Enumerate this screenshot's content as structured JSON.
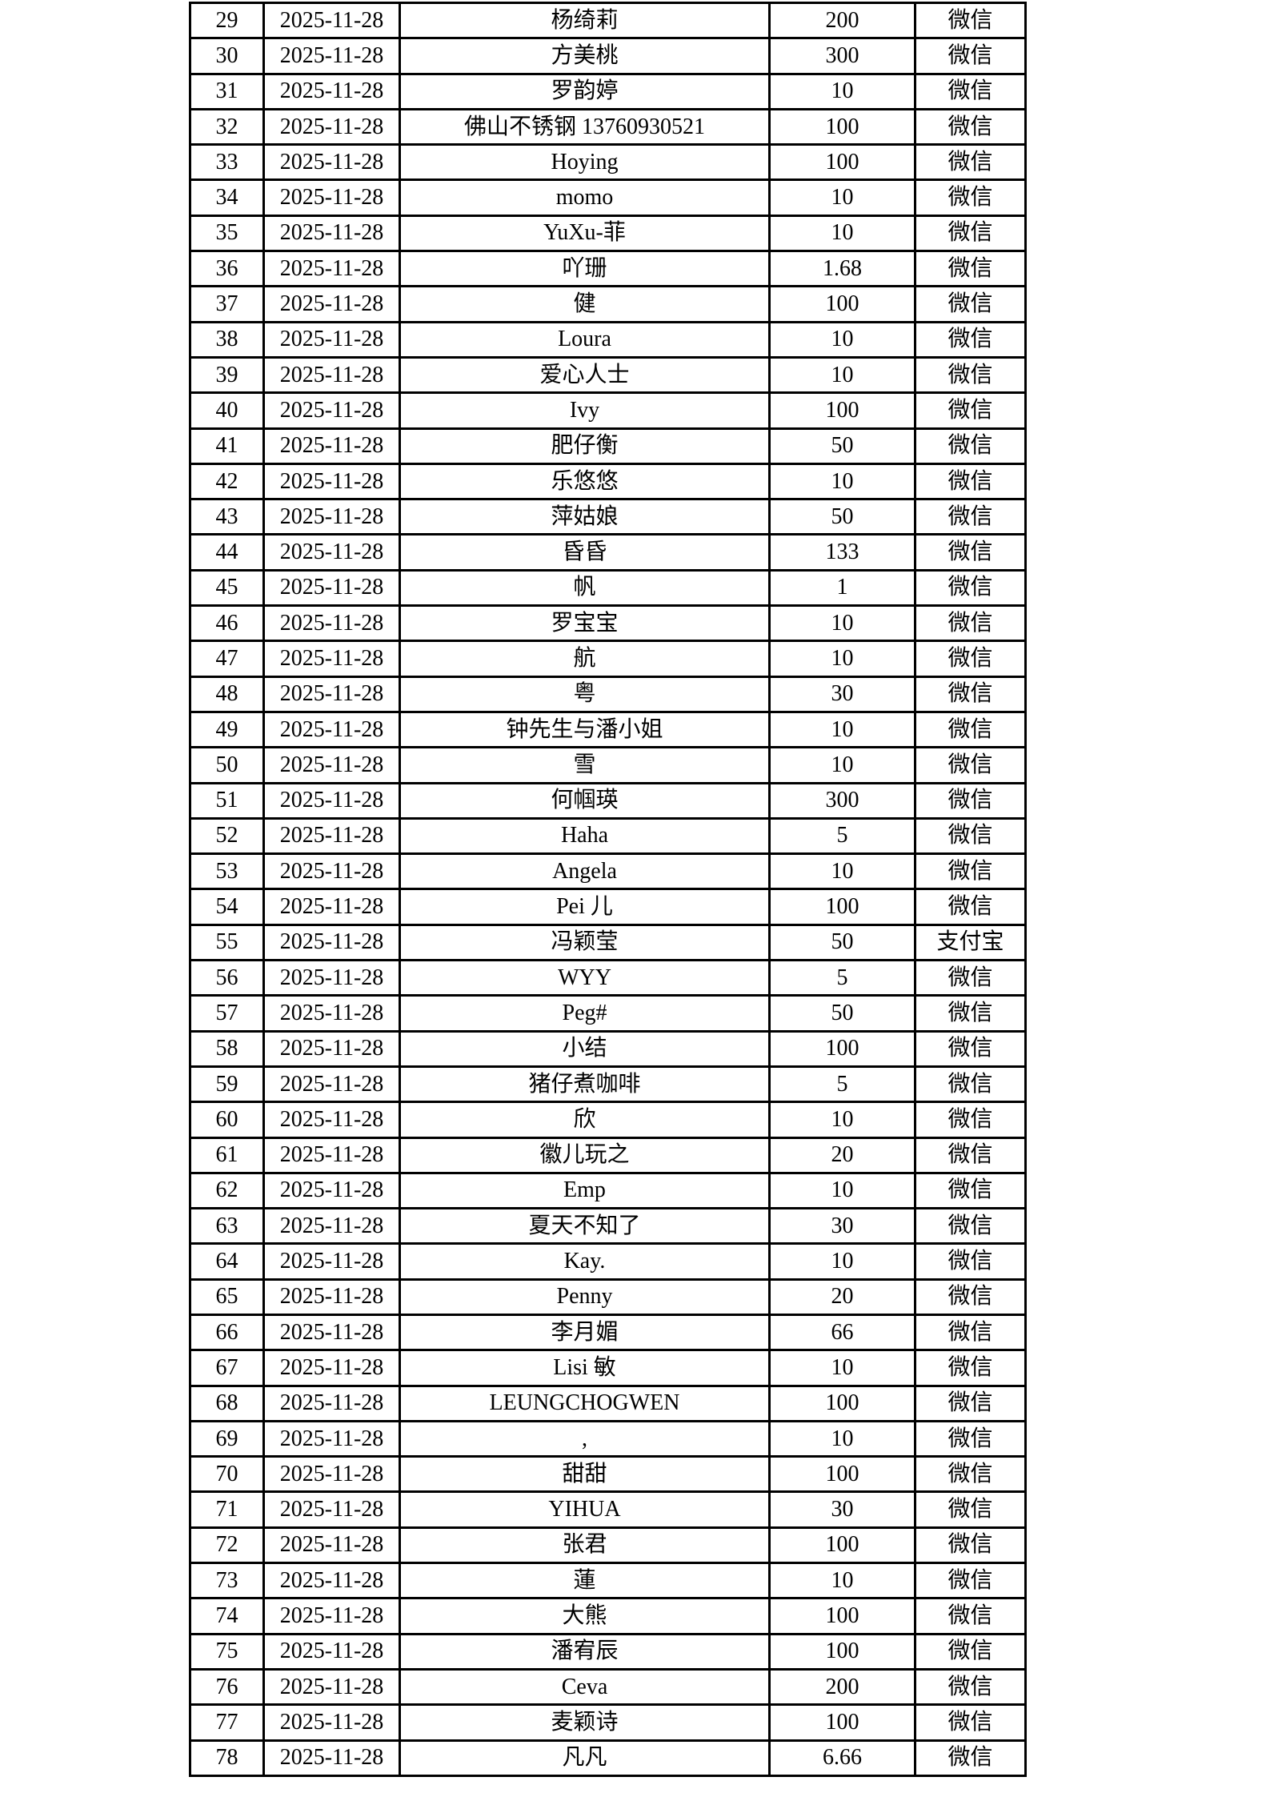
{
  "table": {
    "row_fields": [
      "no",
      "date",
      "name",
      "amount",
      "method"
    ],
    "border_color": "#000000",
    "text_color": "#000000",
    "rows": [
      {
        "no": "29",
        "date": "2025-11-28",
        "name": "杨绮莉",
        "amount": "200",
        "method": "微信"
      },
      {
        "no": "30",
        "date": "2025-11-28",
        "name": "方美桃",
        "amount": "300",
        "method": "微信"
      },
      {
        "no": "31",
        "date": "2025-11-28",
        "name": "罗韵婷",
        "amount": "10",
        "method": "微信"
      },
      {
        "no": "32",
        "date": "2025-11-28",
        "name": "佛山不锈钢 13760930521",
        "amount": "100",
        "method": "微信"
      },
      {
        "no": "33",
        "date": "2025-11-28",
        "name": "Hoying",
        "amount": "100",
        "method": "微信"
      },
      {
        "no": "34",
        "date": "2025-11-28",
        "name": "momo",
        "amount": "10",
        "method": "微信"
      },
      {
        "no": "35",
        "date": "2025-11-28",
        "name": "YuXu-菲",
        "amount": "10",
        "method": "微信"
      },
      {
        "no": "36",
        "date": "2025-11-28",
        "name": "吖珊",
        "amount": "1.68",
        "method": "微信"
      },
      {
        "no": "37",
        "date": "2025-11-28",
        "name": "健",
        "amount": "100",
        "method": "微信"
      },
      {
        "no": "38",
        "date": "2025-11-28",
        "name": "Loura",
        "amount": "10",
        "method": "微信"
      },
      {
        "no": "39",
        "date": "2025-11-28",
        "name": "爱心人士",
        "amount": "10",
        "method": "微信"
      },
      {
        "no": "40",
        "date": "2025-11-28",
        "name": "Ivy",
        "amount": "100",
        "method": "微信"
      },
      {
        "no": "41",
        "date": "2025-11-28",
        "name": "肥仔衡",
        "amount": "50",
        "method": "微信"
      },
      {
        "no": "42",
        "date": "2025-11-28",
        "name": "乐悠悠",
        "amount": "10",
        "method": "微信"
      },
      {
        "no": "43",
        "date": "2025-11-28",
        "name": "萍姑娘",
        "amount": "50",
        "method": "微信"
      },
      {
        "no": "44",
        "date": "2025-11-28",
        "name": "昏昏",
        "amount": "133",
        "method": "微信"
      },
      {
        "no": "45",
        "date": "2025-11-28",
        "name": "帆",
        "amount": "1",
        "method": "微信"
      },
      {
        "no": "46",
        "date": "2025-11-28",
        "name": "罗宝宝",
        "amount": "10",
        "method": "微信"
      },
      {
        "no": "47",
        "date": "2025-11-28",
        "name": "航",
        "amount": "10",
        "method": "微信"
      },
      {
        "no": "48",
        "date": "2025-11-28",
        "name": "粤",
        "amount": "30",
        "method": "微信"
      },
      {
        "no": "49",
        "date": "2025-11-28",
        "name": "钟先生与潘小姐",
        "amount": "10",
        "method": "微信"
      },
      {
        "no": "50",
        "date": "2025-11-28",
        "name": "雪",
        "amount": "10",
        "method": "微信"
      },
      {
        "no": "51",
        "date": "2025-11-28",
        "name": "何帼瑛",
        "amount": "300",
        "method": "微信"
      },
      {
        "no": "52",
        "date": "2025-11-28",
        "name": "Haha",
        "amount": "5",
        "method": "微信"
      },
      {
        "no": "53",
        "date": "2025-11-28",
        "name": "Angela",
        "amount": "10",
        "method": "微信"
      },
      {
        "no": "54",
        "date": "2025-11-28",
        "name": "Pei 儿",
        "amount": "100",
        "method": "微信"
      },
      {
        "no": "55",
        "date": "2025-11-28",
        "name": "冯颖莹",
        "amount": "50",
        "method": "支付宝"
      },
      {
        "no": "56",
        "date": "2025-11-28",
        "name": "WYY",
        "amount": "5",
        "method": "微信"
      },
      {
        "no": "57",
        "date": "2025-11-28",
        "name": "Peg#",
        "amount": "50",
        "method": "微信"
      },
      {
        "no": "58",
        "date": "2025-11-28",
        "name": "小结",
        "amount": "100",
        "method": "微信"
      },
      {
        "no": "59",
        "date": "2025-11-28",
        "name": "猪仔煮咖啡",
        "amount": "5",
        "method": "微信"
      },
      {
        "no": "60",
        "date": "2025-11-28",
        "name": "欣",
        "amount": "10",
        "method": "微信"
      },
      {
        "no": "61",
        "date": "2025-11-28",
        "name": "徽儿玩之",
        "amount": "20",
        "method": "微信"
      },
      {
        "no": "62",
        "date": "2025-11-28",
        "name": "Emp",
        "amount": "10",
        "method": "微信"
      },
      {
        "no": "63",
        "date": "2025-11-28",
        "name": "夏天不知了",
        "amount": "30",
        "method": "微信"
      },
      {
        "no": "64",
        "date": "2025-11-28",
        "name": "Kay.",
        "amount": "10",
        "method": "微信"
      },
      {
        "no": "65",
        "date": "2025-11-28",
        "name": "Penny",
        "amount": "20",
        "method": "微信"
      },
      {
        "no": "66",
        "date": "2025-11-28",
        "name": "李月媚",
        "amount": "66",
        "method": "微信"
      },
      {
        "no": "67",
        "date": "2025-11-28",
        "name": "Lisi 敏",
        "amount": "10",
        "method": "微信"
      },
      {
        "no": "68",
        "date": "2025-11-28",
        "name": "LEUNGCHOGWEN",
        "amount": "100",
        "method": "微信"
      },
      {
        "no": "69",
        "date": "2025-11-28",
        "name": ",",
        "amount": "10",
        "method": "微信"
      },
      {
        "no": "70",
        "date": "2025-11-28",
        "name": "甜甜",
        "amount": "100",
        "method": "微信"
      },
      {
        "no": "71",
        "date": "2025-11-28",
        "name": "YIHUA",
        "amount": "30",
        "method": "微信"
      },
      {
        "no": "72",
        "date": "2025-11-28",
        "name": "张君",
        "amount": "100",
        "method": "微信"
      },
      {
        "no": "73",
        "date": "2025-11-28",
        "name": "蓮",
        "amount": "10",
        "method": "微信"
      },
      {
        "no": "74",
        "date": "2025-11-28",
        "name": "大熊",
        "amount": "100",
        "method": "微信"
      },
      {
        "no": "75",
        "date": "2025-11-28",
        "name": "潘宥辰",
        "amount": "100",
        "method": "微信"
      },
      {
        "no": "76",
        "date": "2025-11-28",
        "name": "Ceva",
        "amount": "200",
        "method": "微信"
      },
      {
        "no": "77",
        "date": "2025-11-28",
        "name": "麦颖诗",
        "amount": "100",
        "method": "微信"
      },
      {
        "no": "78",
        "date": "2025-11-28",
        "name": "凡凡",
        "amount": "6.66",
        "method": "微信"
      }
    ]
  }
}
